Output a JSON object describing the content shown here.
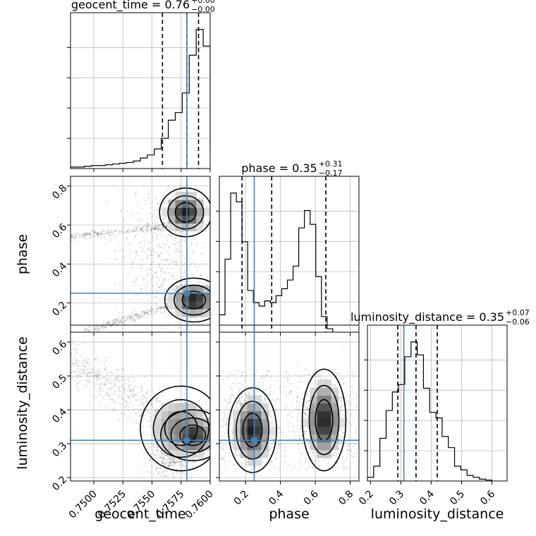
{
  "chart_data": {
    "type": "corner",
    "parameters": [
      "geocent_time",
      "phase",
      "luminosity_distance"
    ],
    "titles": [
      {
        "base": "geocent_time = 0.76",
        "plus": "+0.00",
        "minus": "−0.00"
      },
      {
        "base": "phase = 0.35",
        "plus": "+0.31",
        "minus": "−0.17"
      },
      {
        "base": "luminosity_distance = 0.35",
        "plus": "+0.07",
        "minus": "−0.06"
      }
    ],
    "axis_labels": {
      "x": [
        "geocent_time",
        "phase",
        "luminosity_distance"
      ],
      "y": [
        "phase",
        "luminosity_distance"
      ]
    },
    "ranges": [
      [
        0.748,
        0.76
      ],
      [
        0.05,
        0.85
      ],
      [
        0.19,
        0.65
      ]
    ],
    "ticks": {
      "geocent_time": [
        "0.7500",
        "0.7525",
        "0.7550",
        "0.7575",
        "0.7600"
      ],
      "phase": [
        "0.2",
        "0.4",
        "0.6",
        "0.8"
      ],
      "luminosity_distance": [
        "0.2",
        "0.3",
        "0.4",
        "0.5",
        "0.6"
      ]
    },
    "truths": [
      0.758,
      0.25,
      0.31
    ],
    "quantiles": [
      [
        0.7559,
        0.758,
        0.759
      ],
      [
        0.18,
        0.35,
        0.66
      ],
      [
        0.29,
        0.35,
        0.42
      ]
    ],
    "histograms": [
      {
        "edges_start": 0.748,
        "bin_width": 0.0006,
        "counts": [
          0.01,
          0.01,
          0.015,
          0.02,
          0.02,
          0.025,
          0.03,
          0.035,
          0.04,
          0.05,
          0.07,
          0.09,
          0.13,
          0.2,
          0.32,
          0.37,
          0.5,
          0.75,
          0.92,
          0.81,
          0.13
        ]
      },
      {
        "edges_start": 0.05,
        "bin_width": 0.0325,
        "counts": [
          0.1,
          0.42,
          0.8,
          0.75,
          0.52,
          0.24,
          0.17,
          0.15,
          0.18,
          0.17,
          0.21,
          0.25,
          0.3,
          0.38,
          0.6,
          0.7,
          0.62,
          0.32,
          0.09,
          0.02
        ]
      },
      {
        "edges_start": 0.19,
        "bin_width": 0.0205,
        "counts": [
          0.02,
          0.08,
          0.23,
          0.38,
          0.48,
          0.52,
          0.67,
          0.75,
          0.68,
          0.5,
          0.37,
          0.34,
          0.24,
          0.18,
          0.08,
          0.06,
          0.03,
          0.02,
          0.01,
          0.005
        ]
      }
    ],
    "grid": true,
    "truth_color": "#4682b4",
    "density_color": "#000000"
  }
}
